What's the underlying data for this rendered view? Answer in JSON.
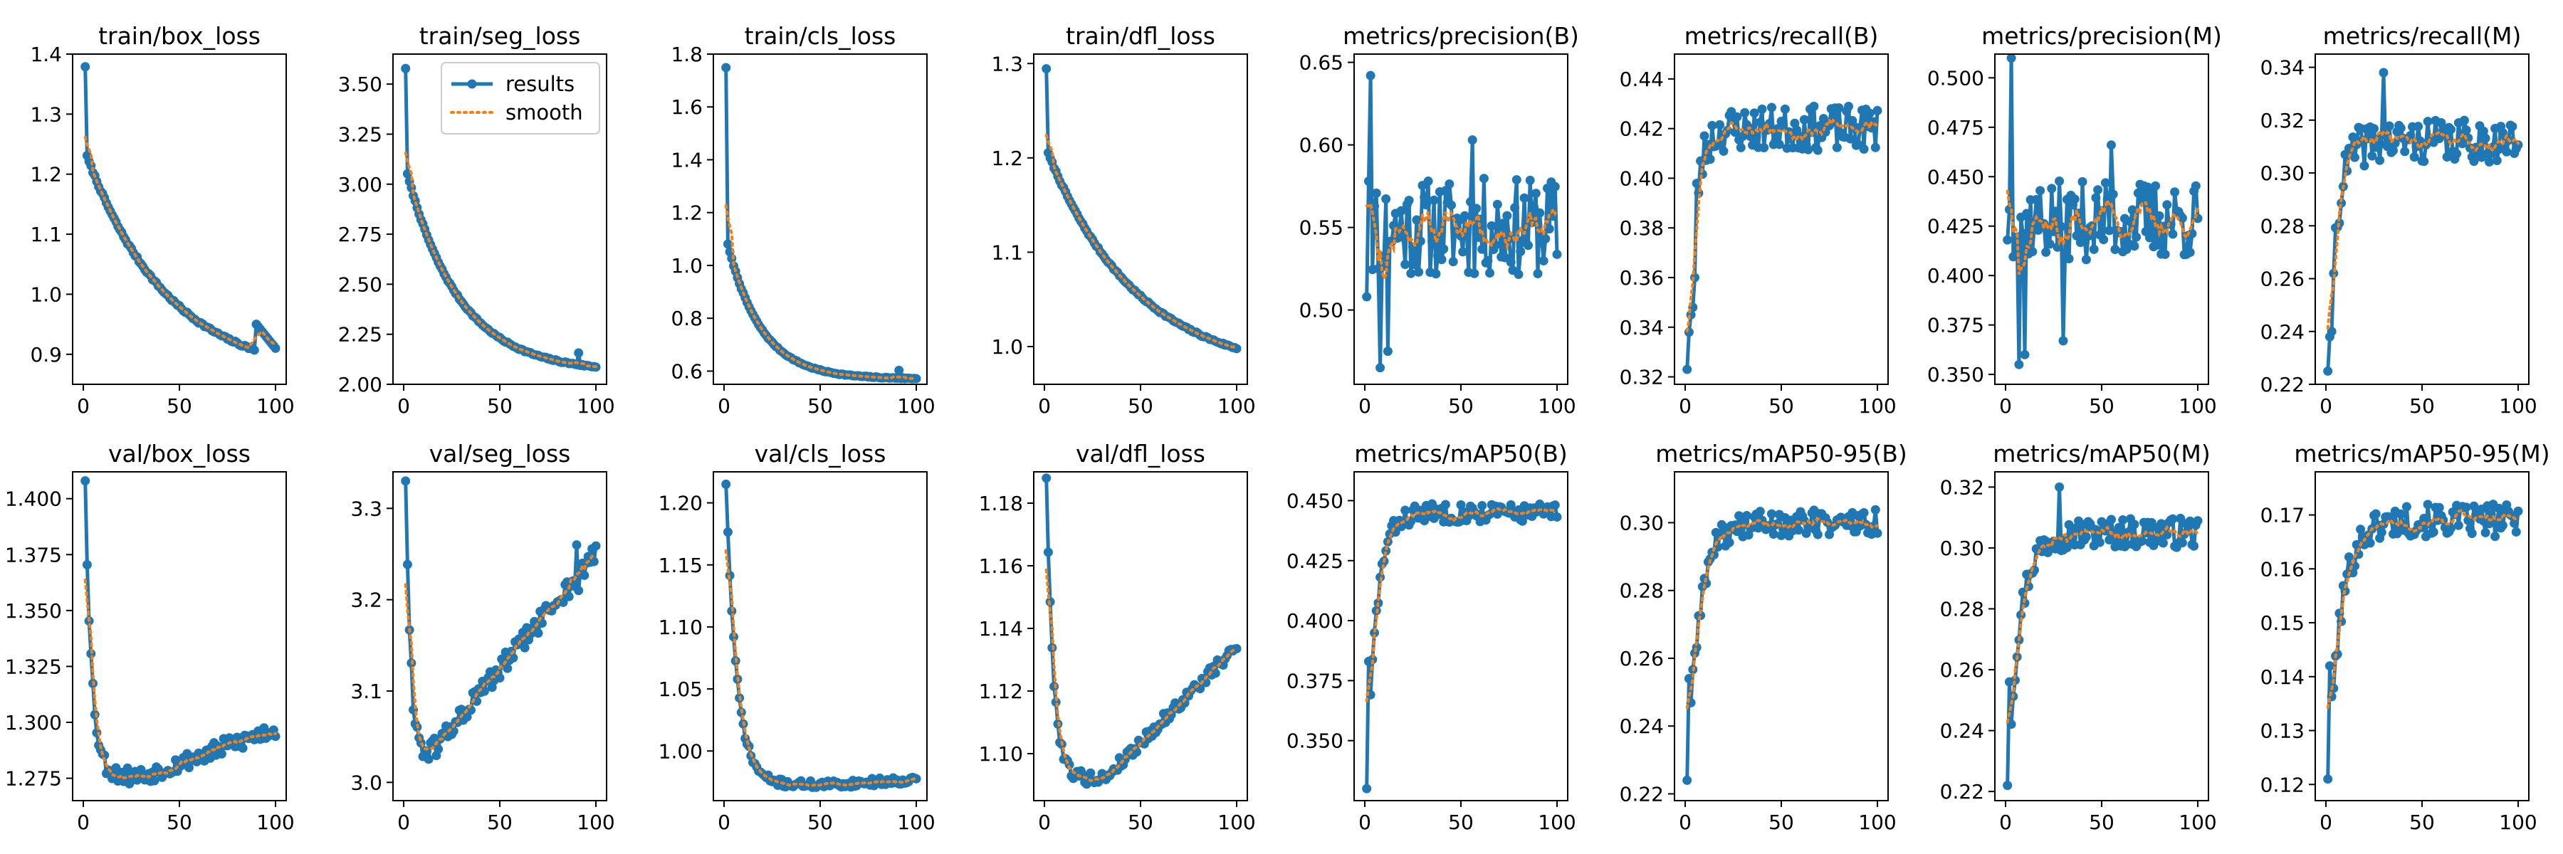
{
  "figure": {
    "x_domain": [
      0,
      100
    ],
    "x_ticks": [
      0,
      50,
      100
    ]
  },
  "colors": {
    "results": "#1f77b4",
    "smooth": "#ff7f0e"
  },
  "legend": {
    "results_label": "results",
    "smooth_label": "smooth",
    "placement": "upper-right of train/seg_loss"
  },
  "chart_data": [
    {
      "type": "line",
      "title": "train/box_loss",
      "ylim": [
        0.85,
        1.4
      ],
      "yticks": [
        "0.9",
        "1.0",
        "1.1",
        "1.2",
        "1.3",
        "1.4"
      ],
      "yvals": [
        0.9,
        1.0,
        1.1,
        1.2,
        1.3,
        1.4
      ],
      "shape": {
        "kind": "decay",
        "start": 1.38,
        "second": 1.23,
        "end": 0.86,
        "k": 0.22,
        "noise": 0.004,
        "jump_at": 89,
        "jump_to": 0.95,
        "jump_end": 0.91
      },
      "series": [
        {
          "name": "results"
        },
        {
          "name": "smooth"
        }
      ]
    },
    {
      "type": "line",
      "title": "train/seg_loss",
      "ylim": [
        2.0,
        3.65
      ],
      "yticks": [
        "2.00",
        "2.25",
        "2.50",
        "2.75",
        "3.00",
        "3.25",
        "3.50"
      ],
      "yvals": [
        2.0,
        2.25,
        2.5,
        2.75,
        3.0,
        3.25,
        3.5
      ],
      "shape": {
        "kind": "decay",
        "start": 3.58,
        "second": 3.05,
        "end": 2.06,
        "k": 0.35,
        "noise": 0.008,
        "bump_at": 90,
        "bump": 0.06
      },
      "series": [
        {
          "name": "results"
        },
        {
          "name": "smooth"
        }
      ],
      "legend": true
    },
    {
      "type": "line",
      "title": "train/cls_loss",
      "ylim": [
        0.55,
        1.8
      ],
      "yticks": [
        "0.6",
        "0.8",
        "1.0",
        "1.2",
        "1.4",
        "1.6",
        "1.8"
      ],
      "yvals": [
        0.6,
        0.8,
        1.0,
        1.2,
        1.4,
        1.6,
        1.8
      ],
      "shape": {
        "kind": "decay",
        "start": 1.75,
        "second": 1.08,
        "end": 0.57,
        "k": 0.55,
        "noise": 0.004,
        "bump_at": 90,
        "bump": 0.03
      },
      "series": [
        {
          "name": "results"
        },
        {
          "name": "smooth"
        }
      ]
    },
    {
      "type": "line",
      "title": "train/dfl_loss",
      "ylim": [
        0.96,
        1.31
      ],
      "yticks": [
        "1.0",
        "1.1",
        "1.2",
        "1.3"
      ],
      "yvals": [
        1.0,
        1.1,
        1.2,
        1.3
      ],
      "shape": {
        "kind": "decay",
        "start": 1.295,
        "second": 1.205,
        "end": 0.97,
        "k": 0.2,
        "noise": 0.002
      },
      "series": [
        {
          "name": "results"
        },
        {
          "name": "smooth"
        }
      ]
    },
    {
      "type": "line",
      "title": "metrics/precision(B)",
      "ylim": [
        0.455,
        0.655
      ],
      "yticks": [
        "0.50",
        "0.55",
        "0.60",
        "0.65"
      ],
      "yvals": [
        0.5,
        0.55,
        0.6,
        0.65
      ],
      "shape": {
        "kind": "noisy",
        "base": 0.55,
        "noise": 0.03,
        "seed": 11,
        "points": {
          "1": 0.508,
          "2": 0.578,
          "3": 0.642,
          "8": 0.465,
          "12": 0.475,
          "56": 0.603
        }
      },
      "series": [
        {
          "name": "results"
        },
        {
          "name": "smooth"
        }
      ]
    },
    {
      "type": "line",
      "title": "metrics/recall(B)",
      "ylim": [
        0.317,
        0.45
      ],
      "yticks": [
        "0.32",
        "0.34",
        "0.36",
        "0.38",
        "0.40",
        "0.42",
        "0.44"
      ],
      "yvals": [
        0.32,
        0.34,
        0.36,
        0.38,
        0.4,
        0.42,
        0.44
      ],
      "shape": {
        "kind": "rise",
        "start": 0.323,
        "plateau": 0.42,
        "k": 0.25,
        "noise": 0.009,
        "seed": 23,
        "points": {
          "1": 0.323,
          "2": 0.338,
          "3": 0.345,
          "4": 0.348,
          "5": 0.36
        }
      },
      "series": [
        {
          "name": "results"
        },
        {
          "name": "smooth"
        }
      ]
    },
    {
      "type": "line",
      "title": "metrics/precision(M)",
      "ylim": [
        0.345,
        0.512
      ],
      "yticks": [
        "0.350",
        "0.375",
        "0.400",
        "0.425",
        "0.450",
        "0.475",
        "0.500"
      ],
      "yvals": [
        0.35,
        0.375,
        0.4,
        0.425,
        0.45,
        0.475,
        0.5
      ],
      "shape": {
        "kind": "noisy",
        "base": 0.428,
        "noise": 0.02,
        "seed": 37,
        "points": {
          "3": 0.51,
          "7": 0.355,
          "10": 0.36,
          "30": 0.367,
          "55": 0.466
        }
      },
      "series": [
        {
          "name": "results"
        },
        {
          "name": "smooth"
        }
      ]
    },
    {
      "type": "line",
      "title": "metrics/recall(M)",
      "ylim": [
        0.22,
        0.345
      ],
      "yticks": [
        "0.22",
        "0.24",
        "0.26",
        "0.28",
        "0.30",
        "0.32",
        "0.34"
      ],
      "yvals": [
        0.22,
        0.24,
        0.26,
        0.28,
        0.3,
        0.32,
        0.34
      ],
      "shape": {
        "kind": "rise",
        "start": 0.225,
        "plateau": 0.312,
        "k": 0.22,
        "noise": 0.008,
        "seed": 41,
        "points": {
          "1": 0.225,
          "2": 0.238,
          "3": 0.24,
          "30": 0.338
        }
      },
      "series": [
        {
          "name": "results"
        },
        {
          "name": "smooth"
        }
      ]
    },
    {
      "type": "line",
      "title": "val/box_loss",
      "ylim": [
        1.265,
        1.412
      ],
      "yticks": [
        "1.275",
        "1.300",
        "1.325",
        "1.350",
        "1.375",
        "1.400"
      ],
      "yvals": [
        1.275,
        1.3,
        1.325,
        1.35,
        1.375,
        1.4
      ],
      "shape": {
        "kind": "valley",
        "start": 1.408,
        "min": 1.276,
        "min_at": 30,
        "end": 1.297,
        "k": 0.3,
        "noise": 0.004,
        "seed": 53
      },
      "series": [
        {
          "name": "results"
        },
        {
          "name": "smooth"
        }
      ]
    },
    {
      "type": "line",
      "title": "val/seg_loss",
      "ylim": [
        2.98,
        3.34
      ],
      "yticks": [
        "3.0",
        "3.1",
        "3.2",
        "3.3"
      ],
      "yvals": [
        3.0,
        3.1,
        3.2,
        3.3
      ],
      "shape": {
        "kind": "valley",
        "start": 3.33,
        "min": 3.03,
        "min_at": 12,
        "end": 3.25,
        "k": 0.4,
        "noise": 0.012,
        "seed": 61,
        "points": {
          "90": 3.26,
          "91": 3.21
        }
      },
      "series": [
        {
          "name": "results"
        },
        {
          "name": "smooth"
        }
      ]
    },
    {
      "type": "line",
      "title": "val/cls_loss",
      "ylim": [
        0.96,
        1.225
      ],
      "yticks": [
        "1.00",
        "1.05",
        "1.10",
        "1.15",
        "1.20"
      ],
      "yvals": [
        1.0,
        1.05,
        1.1,
        1.15,
        1.2
      ],
      "shape": {
        "kind": "valley",
        "start": 1.215,
        "min": 0.973,
        "min_at": 55,
        "end": 0.977,
        "k": 0.18,
        "noise": 0.003,
        "seed": 71
      },
      "series": [
        {
          "name": "results"
        },
        {
          "name": "smooth"
        }
      ]
    },
    {
      "type": "line",
      "title": "val/dfl_loss",
      "ylim": [
        1.085,
        1.19
      ],
      "yticks": [
        "1.10",
        "1.12",
        "1.14",
        "1.16",
        "1.18"
      ],
      "yvals": [
        1.1,
        1.12,
        1.14,
        1.16,
        1.18
      ],
      "shape": {
        "kind": "valley",
        "start": 1.188,
        "min": 1.092,
        "min_at": 30,
        "end": 1.134,
        "k": 0.28,
        "noise": 0.002,
        "seed": 79
      },
      "series": [
        {
          "name": "results"
        },
        {
          "name": "smooth"
        }
      ]
    },
    {
      "type": "line",
      "title": "metrics/mAP50(B)",
      "ylim": [
        0.325,
        0.462
      ],
      "yticks": [
        "0.350",
        "0.375",
        "0.400",
        "0.425",
        "0.450"
      ],
      "yvals": [
        0.35,
        0.375,
        0.4,
        0.425,
        0.45
      ],
      "shape": {
        "kind": "rise",
        "start": 0.33,
        "plateau": 0.445,
        "k": 0.2,
        "noise": 0.004,
        "seed": 83,
        "points": {
          "1": 0.33,
          "2": 0.383
        }
      },
      "series": [
        {
          "name": "results"
        },
        {
          "name": "smooth"
        }
      ]
    },
    {
      "type": "line",
      "title": "metrics/mAP50-95(B)",
      "ylim": [
        0.218,
        0.315
      ],
      "yticks": [
        "0.22",
        "0.24",
        "0.26",
        "0.28",
        "0.30"
      ],
      "yvals": [
        0.22,
        0.24,
        0.26,
        0.28,
        0.3
      ],
      "shape": {
        "kind": "rise",
        "start": 0.224,
        "plateau": 0.3,
        "k": 0.16,
        "noise": 0.004,
        "seed": 89,
        "points": {
          "1": 0.224,
          "2": 0.254
        }
      },
      "series": [
        {
          "name": "results"
        },
        {
          "name": "smooth"
        }
      ]
    },
    {
      "type": "line",
      "title": "metrics/mAP50(M)",
      "ylim": [
        0.217,
        0.325
      ],
      "yticks": [
        "0.22",
        "0.24",
        "0.26",
        "0.28",
        "0.30",
        "0.32"
      ],
      "yvals": [
        0.22,
        0.24,
        0.26,
        0.28,
        0.3,
        0.32
      ],
      "shape": {
        "kind": "rise",
        "start": 0.222,
        "plateau": 0.305,
        "k": 0.16,
        "noise": 0.005,
        "seed": 97,
        "points": {
          "1": 0.222,
          "2": 0.256,
          "28": 0.32
        }
      },
      "series": [
        {
          "name": "results"
        },
        {
          "name": "smooth"
        }
      ]
    },
    {
      "type": "line",
      "title": "metrics/mAP50-95(M)",
      "ylim": [
        0.117,
        0.178
      ],
      "yticks": [
        "0.12",
        "0.13",
        "0.14",
        "0.15",
        "0.16",
        "0.17"
      ],
      "yvals": [
        0.12,
        0.13,
        0.14,
        0.15,
        0.16,
        0.17
      ],
      "shape": {
        "kind": "rise",
        "start": 0.121,
        "plateau": 0.169,
        "k": 0.15,
        "noise": 0.003,
        "seed": 101,
        "points": {
          "1": 0.121,
          "2": 0.142
        }
      },
      "series": [
        {
          "name": "results"
        },
        {
          "name": "smooth"
        }
      ]
    }
  ]
}
